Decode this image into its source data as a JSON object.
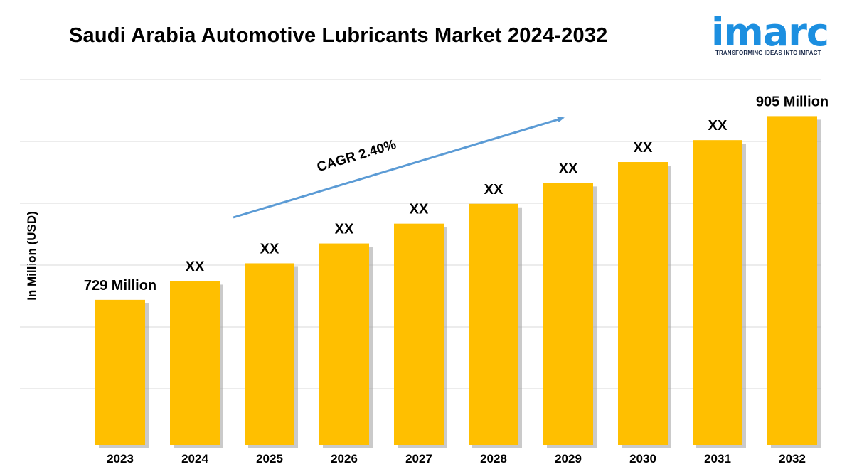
{
  "title": "Saudi Arabia Automotive Lubricants Market 2024-2032",
  "logo": {
    "word": "imarc",
    "tagline": "TRANSFORMING IDEAS INTO IMPACT",
    "color": "#1c8fe0"
  },
  "chart_data": {
    "type": "bar",
    "title": "Saudi Arabia Automotive Lubricants Market 2024-2032",
    "ylabel": "In Million (USD)",
    "xlabel": "",
    "categories": [
      "2023",
      "2024",
      "2025",
      "2026",
      "2027",
      "2028",
      "2029",
      "2030",
      "2031",
      "2032"
    ],
    "values": [
      729,
      747,
      764,
      783,
      802,
      821,
      841,
      861,
      882,
      905
    ],
    "data_labels": [
      "729 Million",
      "XX",
      "XX",
      "XX",
      "XX",
      "XX",
      "XX",
      "XX",
      "XX",
      "905 Million"
    ],
    "ylim": [
      590,
      940
    ],
    "grid": true,
    "bar_color": "#FFBF00",
    "annotation": {
      "text": "CAGR 2.40%",
      "arrow_color": "#5b9bd5"
    }
  }
}
